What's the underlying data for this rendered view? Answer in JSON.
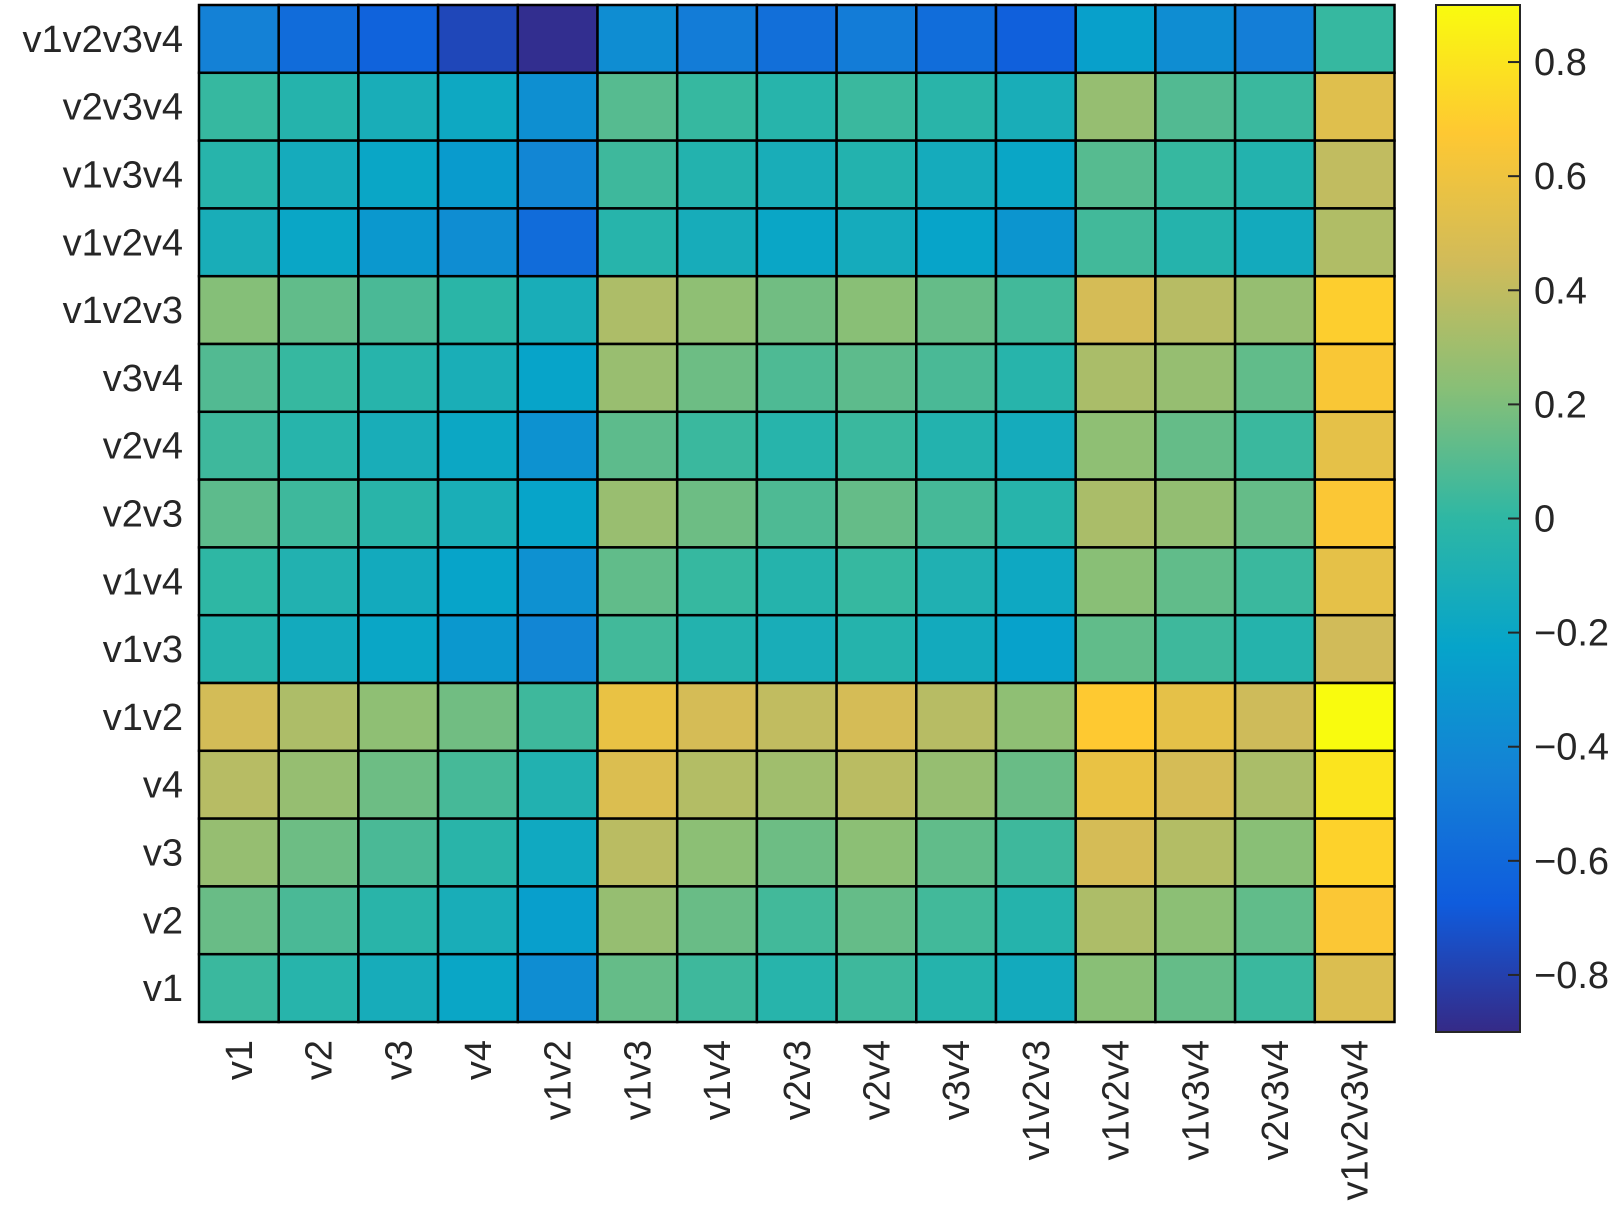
{
  "chart_data": {
    "type": "heatmap",
    "x_categories": [
      "v1",
      "v2",
      "v3",
      "v4",
      "v1v2",
      "v1v3",
      "v1v4",
      "v2v3",
      "v2v4",
      "v3v4",
      "v1v2v3",
      "v1v2v4",
      "v1v3v4",
      "v2v3v4",
      "v1v2v3v4"
    ],
    "y_categories": [
      "v1v2v3v4",
      "v2v3v4",
      "v1v3v4",
      "v1v2v4",
      "v1v2v3",
      "v3v4",
      "v2v4",
      "v2v3",
      "v1v4",
      "v1v3",
      "v1v2",
      "v4",
      "v3",
      "v2",
      "v1"
    ],
    "values": [
      [
        -0.45,
        -0.58,
        -0.63,
        -0.77,
        -0.88,
        -0.37,
        -0.48,
        -0.56,
        -0.48,
        -0.57,
        -0.65,
        -0.25,
        -0.37,
        -0.47,
        0.02
      ],
      [
        0.02,
        -0.05,
        -0.12,
        -0.18,
        -0.36,
        0.1,
        0.02,
        -0.04,
        0.03,
        -0.03,
        -0.12,
        0.27,
        0.09,
        0.03,
        0.52
      ],
      [
        -0.04,
        -0.14,
        -0.2,
        -0.28,
        -0.42,
        0.04,
        -0.06,
        -0.12,
        -0.06,
        -0.14,
        -0.2,
        0.1,
        0.02,
        -0.06,
        0.4
      ],
      [
        -0.12,
        -0.2,
        -0.3,
        -0.37,
        -0.58,
        -0.04,
        -0.13,
        -0.2,
        -0.14,
        -0.22,
        -0.32,
        0.05,
        -0.05,
        -0.15,
        0.35
      ],
      [
        0.22,
        0.13,
        0.07,
        -0.02,
        -0.12,
        0.34,
        0.25,
        0.17,
        0.23,
        0.14,
        0.05,
        0.47,
        0.37,
        0.27,
        0.7
      ],
      [
        0.09,
        0.02,
        -0.04,
        -0.11,
        -0.22,
        0.28,
        0.16,
        0.08,
        0.12,
        0.07,
        -0.04,
        0.33,
        0.27,
        0.13,
        0.65
      ],
      [
        0.04,
        -0.04,
        -0.12,
        -0.19,
        -0.34,
        0.12,
        0.03,
        -0.04,
        0.03,
        -0.06,
        -0.14,
        0.25,
        0.14,
        0.03,
        0.55
      ],
      [
        0.12,
        0.04,
        -0.03,
        -0.11,
        -0.22,
        0.28,
        0.16,
        0.08,
        0.14,
        0.06,
        -0.04,
        0.33,
        0.26,
        0.14,
        0.66
      ],
      [
        0.0,
        -0.07,
        -0.15,
        -0.22,
        -0.35,
        0.13,
        0.02,
        -0.05,
        0.02,
        -0.08,
        -0.18,
        0.23,
        0.13,
        0.03,
        0.55
      ],
      [
        -0.05,
        -0.15,
        -0.2,
        -0.3,
        -0.42,
        0.05,
        -0.06,
        -0.12,
        -0.05,
        -0.15,
        -0.24,
        0.13,
        0.04,
        -0.05,
        0.45
      ],
      [
        0.46,
        0.34,
        0.25,
        0.17,
        0.04,
        0.57,
        0.47,
        0.4,
        0.47,
        0.37,
        0.25,
        0.68,
        0.55,
        0.44,
        0.9
      ],
      [
        0.37,
        0.27,
        0.16,
        0.06,
        -0.07,
        0.5,
        0.36,
        0.3,
        0.38,
        0.27,
        0.15,
        0.57,
        0.47,
        0.33,
        0.8
      ],
      [
        0.27,
        0.16,
        0.07,
        -0.03,
        -0.17,
        0.38,
        0.24,
        0.16,
        0.24,
        0.13,
        0.04,
        0.47,
        0.36,
        0.23,
        0.72
      ],
      [
        0.15,
        0.07,
        -0.03,
        -0.12,
        -0.26,
        0.27,
        0.15,
        0.05,
        0.14,
        0.05,
        -0.05,
        0.34,
        0.24,
        0.13,
        0.66
      ],
      [
        0.03,
        -0.04,
        -0.13,
        -0.2,
        -0.37,
        0.14,
        0.04,
        -0.04,
        0.04,
        -0.05,
        -0.15,
        0.23,
        0.14,
        0.03,
        0.5
      ]
    ],
    "colorbar": {
      "limits": [
        -0.9,
        0.9
      ],
      "ticks": [
        0.8,
        0.6,
        0.4,
        0.2,
        0,
        -0.2,
        -0.4,
        -0.6,
        -0.8
      ],
      "tick_labels": [
        "0.8",
        "0.6",
        "0.4",
        "0.2",
        "0",
        "−0.2",
        "−0.4",
        "−0.6",
        "−0.8"
      ]
    },
    "colormap": "parula",
    "grid": true,
    "title": "",
    "xlabel": "",
    "ylabel": ""
  }
}
